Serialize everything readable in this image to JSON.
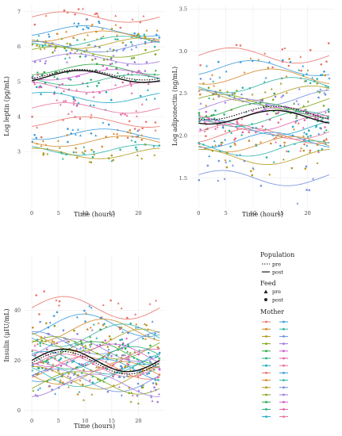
{
  "chart_data": [
    {
      "type": "scatter",
      "title": "",
      "xlabel": "Time (hours)",
      "ylabel": "Log leptin (pg/mL)",
      "xlim": [
        -1.5,
        25
      ],
      "ylim": [
        1.4,
        7.2
      ],
      "xticks": [
        0,
        5,
        10,
        15,
        20
      ],
      "yticks": [
        3,
        4,
        5,
        6,
        7
      ],
      "grid": true,
      "population_curves": [
        {
          "name": "pre",
          "style": "dotted",
          "mean": 5.2,
          "amp": 0.15,
          "phase": 3
        },
        {
          "name": "post",
          "style": "solid",
          "mean": 5.15,
          "amp": 0.17,
          "phase": 3
        }
      ],
      "mother_curve_means": [
        6.85,
        6.45,
        6.3,
        6.15,
        6.1,
        6.0,
        5.85,
        5.65,
        5.35,
        5.2,
        5.05,
        4.85,
        4.55,
        4.25,
        3.85,
        3.5,
        3.3,
        3.05,
        2.95
      ],
      "mother_curve_amplitude": 0.15,
      "points_per_mother": 18,
      "point_spread": 0.3
    },
    {
      "type": "scatter",
      "title": "",
      "xlabel": "Time (hours)",
      "ylabel": "Log adiponectin (ng/mL)",
      "xlim": [
        -1.5,
        25
      ],
      "ylim": [
        1.15,
        3.55
      ],
      "xticks": [
        0,
        5,
        10,
        15,
        20
      ],
      "yticks": [
        1.5,
        2.0,
        2.5,
        3.0,
        3.5
      ],
      "grid": true,
      "population_curves": [
        {
          "name": "pre",
          "style": "dotted",
          "mean": 2.27,
          "amp": 0.08,
          "phase": 8
        },
        {
          "name": "post",
          "style": "solid",
          "mean": 2.22,
          "amp": 0.08,
          "phase": 8
        }
      ],
      "mother_curve_means": [
        2.95,
        2.8,
        2.7,
        2.6,
        2.5,
        2.45,
        2.4,
        2.35,
        2.3,
        2.25,
        2.2,
        2.15,
        2.1,
        2.05,
        2.0,
        1.95,
        1.9,
        1.85,
        1.75,
        1.5
      ],
      "mother_curve_amplitude": 0.09,
      "points_per_mother": 16,
      "point_spread": 0.18
    },
    {
      "type": "scatter",
      "title": "",
      "xlabel": "Time (hours)",
      "ylabel": "Insulin (μIU/mL)",
      "xlim": [
        -1.5,
        25
      ],
      "ylim": [
        -2,
        62
      ],
      "xticks": [
        0,
        5,
        10,
        15,
        20
      ],
      "yticks": [
        0,
        20,
        40
      ],
      "grid": true,
      "population_curves": [
        {
          "name": "pre",
          "style": "dotted",
          "mean": 19,
          "amp": 4.5,
          "phase": 0
        },
        {
          "name": "post",
          "style": "solid",
          "mean": 20,
          "amp": 4.5,
          "phase": 0
        }
      ],
      "mother_curve_means": [
        41,
        34,
        32,
        30,
        28,
        27,
        25,
        24,
        23,
        22,
        21,
        20,
        19,
        18,
        17,
        16,
        15,
        14,
        13,
        12,
        11,
        10
      ],
      "mother_curve_amplitude": 4.5,
      "points_per_mother": 17,
      "point_spread": 6
    }
  ],
  "legend": {
    "population_title": "Population",
    "population_items": [
      {
        "label": "pre",
        "style": "dotted"
      },
      {
        "label": "post",
        "style": "solid"
      }
    ],
    "feed_title": "Feed",
    "feed_items": [
      {
        "label": "pre",
        "shape": "triangle"
      },
      {
        "label": "post",
        "shape": "circle"
      }
    ],
    "mother_title": "Mother",
    "mother_colors": [
      "#e8736a",
      "#3a9bd9",
      "#d48a2a",
      "#2fb6a8",
      "#b39a1f",
      "#6f8fe0",
      "#7fa61a",
      "#a07bdc",
      "#2fa84a",
      "#d05fcf",
      "#27b07d",
      "#e060a8",
      "#22a8c8",
      "#e870a0"
    ]
  }
}
